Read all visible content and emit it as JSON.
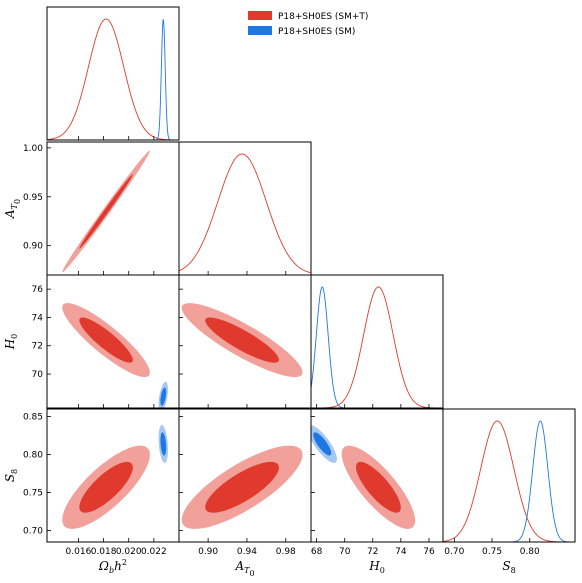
{
  "chart_data": {
    "type": "triangle-contour",
    "legend": {
      "placement": "top-center",
      "entries": [
        {
          "label": "P18+SH0ES (SM+T)",
          "color": "#e03a2e"
        },
        {
          "label": "P18+SH0ES (SM)",
          "color": "#1f77e4"
        }
      ]
    },
    "parameters": [
      {
        "key": "omb",
        "label": "Ωbh²",
        "range": [
          0.0135,
          0.024
        ],
        "ticks": [
          0.016,
          0.018,
          0.02,
          0.022
        ],
        "tick_labels": [
          "0.016",
          "0.018",
          "0.020",
          "0.022"
        ]
      },
      {
        "key": "atau",
        "label": "AT₀",
        "range": [
          0.87,
          1.006
        ],
        "ticks": [
          0.9,
          0.95,
          1.0
        ],
        "tick_labels_y": [
          "0.90",
          "0.95",
          "1.00"
        ],
        "ticks_x": [
          0.9,
          0.94,
          0.98
        ],
        "tick_labels_x": [
          "0.90",
          "0.94",
          "0.98"
        ]
      },
      {
        "key": "h0",
        "label": "H₀",
        "range": [
          67.6,
          77.0
        ],
        "ticks": [
          70,
          72,
          74,
          76
        ],
        "tick_labels": [
          "70",
          "72",
          "74",
          "76"
        ],
        "ticks_x": [
          68,
          70,
          72,
          74,
          76
        ],
        "tick_labels_x": [
          "68",
          "70",
          "72",
          "74",
          "76"
        ]
      },
      {
        "key": "s8",
        "label": "S₈",
        "range": [
          0.685,
          0.86
        ],
        "ticks": [
          0.7,
          0.75,
          0.8,
          0.85
        ],
        "tick_labels": [
          "0.70",
          "0.75",
          "0.80",
          "0.85"
        ],
        "ticks_x": [
          0.7,
          0.75,
          0.8
        ],
        "tick_labels_x": [
          "0.70",
          "0.75",
          "0.80"
        ]
      }
    ],
    "series": [
      {
        "name": "P18+SH0ES (SM+T)",
        "color": "#e03a2e",
        "fill_68": "#e03a2e",
        "fill_95": "#f2a09a",
        "mean": {
          "omb": 0.0182,
          "atau": 0.935,
          "h0": 72.4,
          "s8": 0.757
        },
        "sigma": {
          "omb": 0.0014,
          "atau": 0.025,
          "h0": 1.05,
          "s8": 0.022
        },
        "correlation": {
          "omb-atau": 0.995,
          "omb-h0": -0.88,
          "atau-h0": -0.87,
          "omb-s8": 0.78,
          "atau-s8": 0.78,
          "h0-s8": -0.8
        }
      },
      {
        "name": "P18+SH0ES (SM)",
        "color": "#1f77e4",
        "fill_68": "#1f77e4",
        "fill_95": "#a3c8f2",
        "mean": {
          "omb": 0.02275,
          "h0": 68.4,
          "s8": 0.814
        },
        "sigma": {
          "omb": 0.00015,
          "h0": 0.42,
          "s8": 0.01
        },
        "correlation": {
          "omb-h0": 0.5,
          "omb-s8": -0.3,
          "h0-s8": -0.8
        }
      }
    ]
  }
}
